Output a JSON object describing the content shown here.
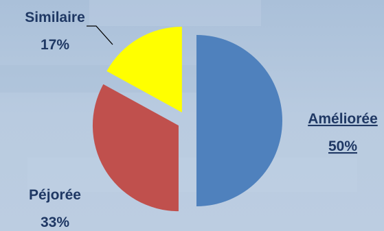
{
  "chart_data": {
    "type": "pie",
    "title": "",
    "slices": [
      {
        "label": "Améliorée",
        "value": 50,
        "value_label": "50%",
        "color": "#4f81bd"
      },
      {
        "label": "Péjorée",
        "value": 33,
        "value_label": "33%",
        "color": "#c0504d"
      },
      {
        "label": "Similaire",
        "value": 17,
        "value_label": "17%",
        "color": "#ffff00"
      }
    ],
    "legend": "none",
    "exploded": true
  },
  "colors": {
    "background": "#b4c8df",
    "label_text": "#1f3864"
  }
}
